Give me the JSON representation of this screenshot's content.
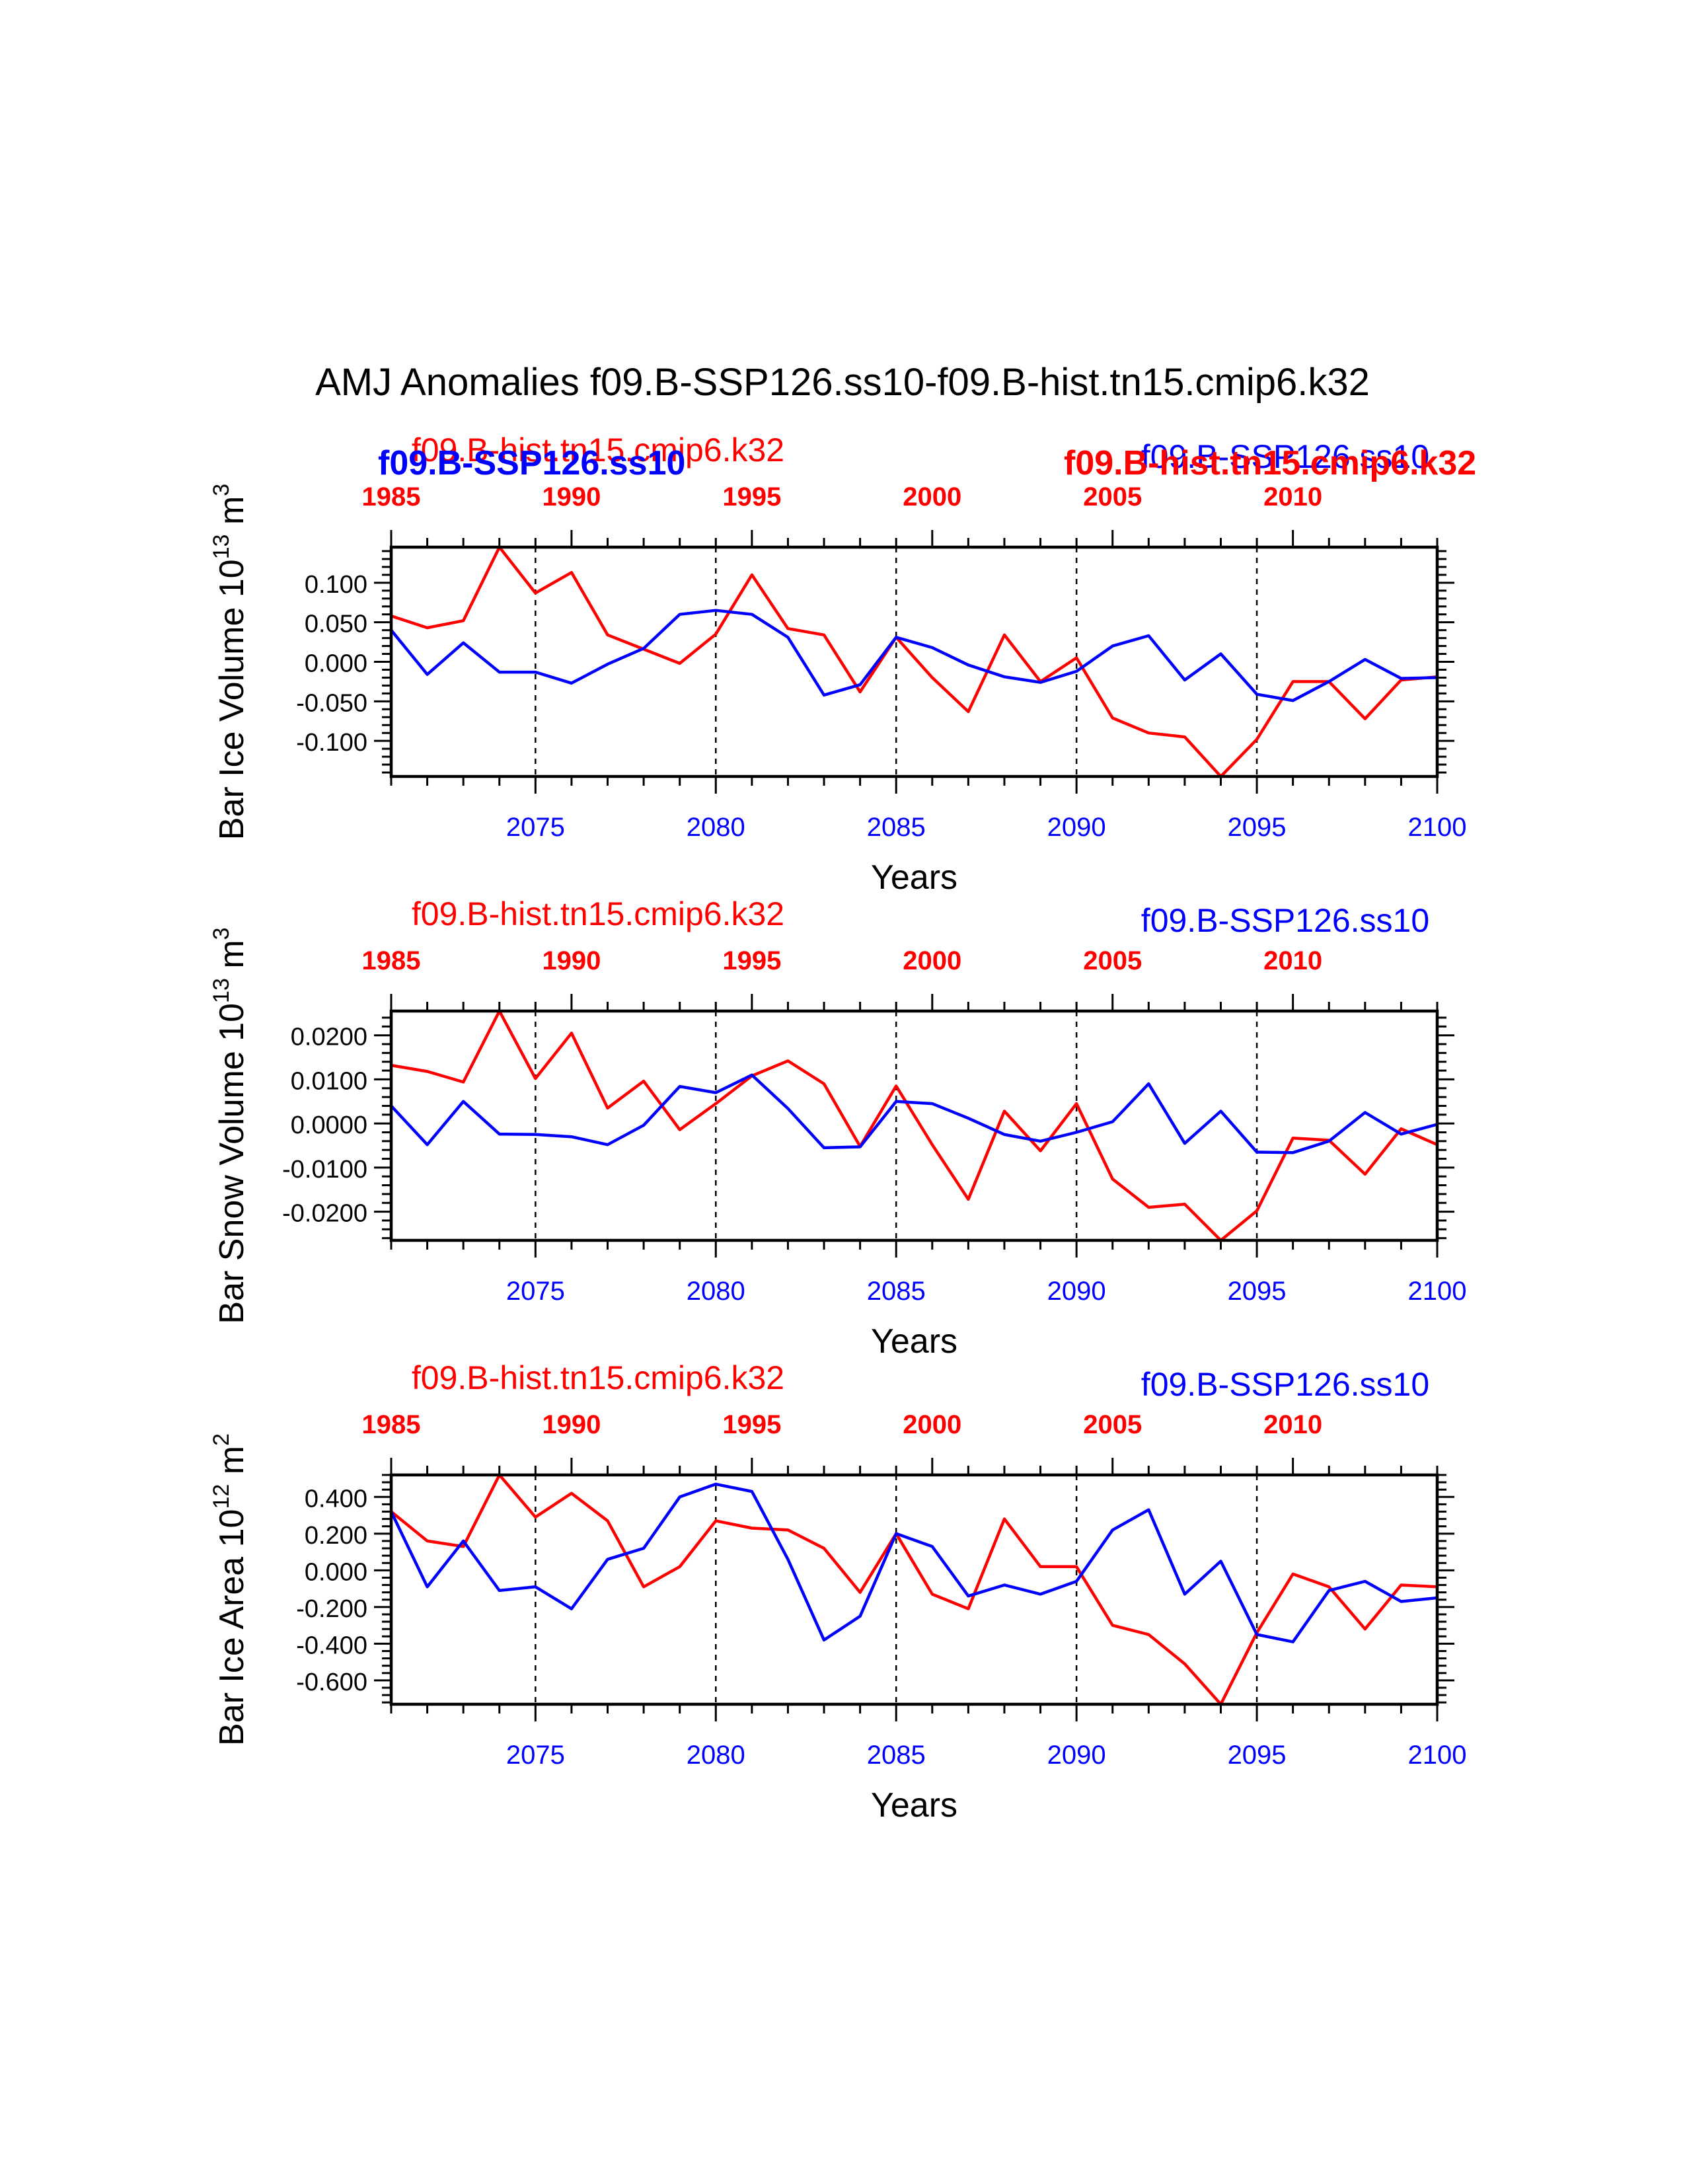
{
  "figure": {
    "title": "AMJ Anomalies f09.B-SSP126.ss10-f09.B-hist.tn15.cmip6.k32",
    "overlay_labels": {
      "blue_bold": "f09.B-SSP126.ss10",
      "red_bold": "f09.B-hist.tn15.cmip6.k32"
    },
    "colors": {
      "blue": "#0000ff",
      "red": "#ff0000",
      "axis": "#000000"
    }
  },
  "chart_data": [
    {
      "type": "line",
      "ylabel": "Bar Ice Volume 10^13 m^3",
      "ylabel_parts": {
        "base": "Bar Ice Volume 10",
        "exp1": "13",
        "unit": " m",
        "exp2": "3"
      },
      "xlabel": "Years",
      "bottom_axis": {
        "range": [
          2071,
          2100
        ],
        "ticks": [
          2075,
          2080,
          2085,
          2090,
          2095,
          2100
        ],
        "color": "#0000ff"
      },
      "top_axis": {
        "range": [
          1985,
          2014
        ],
        "ticks": [
          1985,
          1990,
          1995,
          2000,
          2005,
          2010
        ],
        "color": "#ff0000"
      },
      "ylim": [
        -0.145,
        0.145
      ],
      "yticks": [
        -0.1,
        -0.05,
        0.0,
        0.05,
        0.1
      ],
      "yticklabels": [
        "-0.100",
        "-0.050",
        "0.000",
        "0.050",
        "0.100"
      ],
      "minor_ystep": 0.01,
      "vlines": [
        2075,
        2080,
        2085,
        2090,
        2095
      ],
      "series": [
        {
          "name": "f09.B-hist.tn15.cmip6.k32",
          "color": "#ff0000",
          "values": [
            0.058,
            0.043,
            0.052,
            0.145,
            0.087,
            0.113,
            0.034,
            0.016,
            -0.002,
            0.035,
            0.11,
            0.042,
            0.034,
            -0.038,
            0.031,
            -0.02,
            -0.063,
            0.034,
            -0.025,
            0.005,
            -0.071,
            -0.09,
            -0.095,
            -0.145,
            -0.098,
            -0.025,
            -0.025,
            -0.072,
            -0.023,
            -0.019
          ]
        },
        {
          "name": "f09.B-SSP126.ss10",
          "color": "#0000ff",
          "values": [
            0.04,
            -0.016,
            0.024,
            -0.013,
            -0.013,
            -0.027,
            -0.003,
            0.017,
            0.06,
            0.065,
            0.06,
            0.031,
            -0.042,
            -0.029,
            0.031,
            0.018,
            -0.004,
            -0.019,
            -0.026,
            -0.012,
            0.02,
            0.033,
            -0.023,
            0.01,
            -0.041,
            -0.049,
            -0.025,
            0.003,
            -0.021,
            -0.02
          ]
        }
      ],
      "legend_top": {
        "left": "f09.B-hist.tn15.cmip6.k32",
        "right": "f09.B-SSP126.ss10"
      }
    },
    {
      "type": "line",
      "ylabel": "Bar Snow Volume 10^13 m^3",
      "ylabel_parts": {
        "base": "Bar Snow Volume 10",
        "exp1": "13",
        "unit": " m",
        "exp2": "3"
      },
      "xlabel": "Years",
      "bottom_axis": {
        "range": [
          2071,
          2100
        ],
        "ticks": [
          2075,
          2080,
          2085,
          2090,
          2095,
          2100
        ],
        "color": "#0000ff"
      },
      "top_axis": {
        "range": [
          1985,
          2014
        ],
        "ticks": [
          1985,
          1990,
          1995,
          2000,
          2005,
          2010
        ],
        "color": "#ff0000"
      },
      "ylim": [
        -0.0265,
        0.0255
      ],
      "yticks": [
        -0.02,
        -0.01,
        0.0,
        0.01,
        0.02
      ],
      "yticklabels": [
        "-0.0200",
        "-0.0100",
        "0.0000",
        "0.0100",
        "0.0200"
      ],
      "minor_ystep": 0.002,
      "vlines": [
        2075,
        2080,
        2085,
        2090,
        2095
      ],
      "series": [
        {
          "name": "f09.B-hist.tn15.cmip6.k32",
          "color": "#ff0000",
          "values": [
            0.0132,
            0.0118,
            0.0094,
            0.0255,
            0.0102,
            0.0205,
            0.0035,
            0.0096,
            -0.0014,
            0.0045,
            0.0108,
            0.0142,
            0.009,
            -0.0052,
            0.0085,
            -0.0048,
            -0.0172,
            0.0028,
            -0.0062,
            0.0045,
            -0.0126,
            -0.019,
            -0.0183,
            -0.0265,
            -0.0198,
            -0.0033,
            -0.0038,
            -0.0115,
            -0.0012,
            -0.0048
          ]
        },
        {
          "name": "f09.B-SSP126.ss10",
          "color": "#0000ff",
          "values": [
            0.004,
            -0.0048,
            0.005,
            -0.0024,
            -0.0025,
            -0.003,
            -0.0048,
            -0.0004,
            0.0084,
            0.007,
            0.011,
            0.0034,
            -0.0055,
            -0.0053,
            0.005,
            0.0045,
            0.0012,
            -0.0025,
            -0.004,
            -0.002,
            0.0004,
            0.009,
            -0.0045,
            0.0028,
            -0.0065,
            -0.0066,
            -0.004,
            0.0025,
            -0.0024,
            -0.0002
          ]
        }
      ],
      "legend_top": {
        "left": "f09.B-hist.tn15.cmip6.k32",
        "right": "f09.B-SSP126.ss10"
      }
    },
    {
      "type": "line",
      "ylabel": "Bar Ice Area 10^12 m^2",
      "ylabel_parts": {
        "base": "Bar Ice Area 10",
        "exp1": "12",
        "unit": " m",
        "exp2": "2"
      },
      "xlabel": "Years",
      "bottom_axis": {
        "range": [
          2071,
          2100
        ],
        "ticks": [
          2075,
          2080,
          2085,
          2090,
          2095,
          2100
        ],
        "color": "#0000ff"
      },
      "top_axis": {
        "range": [
          1985,
          2014
        ],
        "ticks": [
          1985,
          1990,
          1995,
          2000,
          2005,
          2010
        ],
        "color": "#ff0000"
      },
      "ylim": [
        -0.73,
        0.52
      ],
      "yticks": [
        -0.6,
        -0.4,
        -0.2,
        0.0,
        0.2,
        0.4
      ],
      "yticklabels": [
        "-0.600",
        "-0.400",
        "-0.200",
        "0.000",
        "0.200",
        "0.400"
      ],
      "minor_ystep": 0.04,
      "vlines": [
        2075,
        2080,
        2085,
        2090,
        2095
      ],
      "series": [
        {
          "name": "f09.B-hist.tn15.cmip6.k32",
          "color": "#ff0000",
          "values": [
            0.32,
            0.16,
            0.13,
            0.52,
            0.29,
            0.42,
            0.27,
            -0.09,
            0.02,
            0.27,
            0.23,
            0.22,
            0.12,
            -0.12,
            0.2,
            -0.13,
            -0.21,
            0.28,
            0.02,
            0.02,
            -0.3,
            -0.35,
            -0.51,
            -0.73,
            -0.34,
            -0.02,
            -0.09,
            -0.32,
            -0.08,
            -0.09
          ]
        },
        {
          "name": "f09.B-SSP126.ss10",
          "color": "#0000ff",
          "values": [
            0.32,
            -0.09,
            0.16,
            -0.11,
            -0.09,
            -0.21,
            0.06,
            0.12,
            0.4,
            0.47,
            0.43,
            0.06,
            -0.38,
            -0.25,
            0.2,
            0.13,
            -0.14,
            -0.08,
            -0.13,
            -0.06,
            0.22,
            0.33,
            -0.13,
            0.05,
            -0.35,
            -0.39,
            -0.11,
            -0.06,
            -0.17,
            -0.15
          ]
        }
      ],
      "legend_top": {
        "left": "f09.B-hist.tn15.cmip6.k32",
        "right": "f09.B-SSP126.ss10"
      }
    }
  ]
}
